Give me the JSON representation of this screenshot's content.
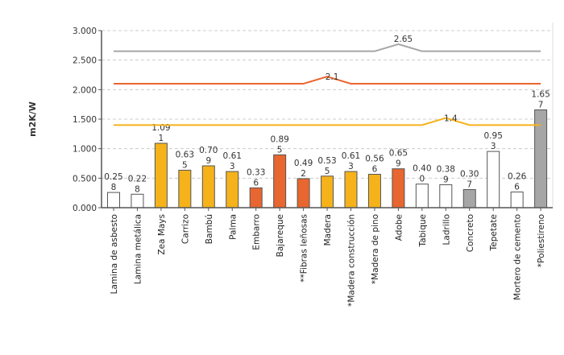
{
  "chart_data": {
    "type": "bar",
    "ylabel": "m2K/W",
    "ylim": [
      0,
      3
    ],
    "yticks": [
      "0.000",
      "0.500",
      "1.000",
      "1.500",
      "2.000",
      "2.500",
      "3.000"
    ],
    "grid": true,
    "categories": [
      "Lamina de asbesto",
      "Lamina metálica",
      "Zea Mays",
      "Carrizo",
      "Bambú",
      "Palma",
      "Embarro",
      "Bajareque",
      "**Fibras leñosas",
      "Madera",
      "*Madera construcción",
      "*Madera de pino",
      "Adobe",
      "Tabique",
      "Ladrillo",
      "Concreto",
      "Tepetate",
      "Mortero de cemento",
      "*Poliestireno"
    ],
    "values": [
      0.258,
      0.228,
      1.091,
      0.635,
      0.709,
      0.613,
      0.336,
      0.895,
      0.492,
      0.535,
      0.613,
      0.566,
      0.659,
      0.4,
      0.389,
      0.307,
      0.953,
      0.266,
      1.657
    ],
    "bar_labels_top": [
      "0.25",
      "0.22",
      "1.09",
      "0.63",
      "0.70",
      "0.61",
      "0.33",
      "0.89",
      "0.49",
      "0.53",
      "0.61",
      "0.56",
      "0.65",
      "0.40",
      "0.38",
      "0.30",
      "0.95",
      "0.26",
      "1.65"
    ],
    "bar_labels_bottom": [
      "8",
      "8",
      "1",
      "5",
      "9",
      "3",
      "6",
      "5",
      "2",
      "5",
      "3",
      "6",
      "9",
      "0",
      "9",
      "7",
      "3",
      "6",
      "7"
    ],
    "bar_colors": [
      "#ffffff",
      "#ffffff",
      "#f5b21b",
      "#f5b21b",
      "#f5b21b",
      "#f5b21b",
      "#e8662f",
      "#e8662f",
      "#e8662f",
      "#f5b21b",
      "#f5b21b",
      "#f5b21b",
      "#e8662f",
      "#ffffff",
      "#ffffff",
      "#a6a6a6",
      "#ffffff",
      "#ffffff",
      "#a6a6a6"
    ],
    "lines": [
      {
        "color": "#a6a6a6",
        "label": "2.65",
        "values": [
          2.65,
          2.65,
          2.65,
          2.65,
          2.65,
          2.65,
          2.65,
          2.65,
          2.65,
          2.65,
          2.65,
          2.65,
          2.77,
          2.65,
          2.65,
          2.65,
          2.65,
          2.65,
          2.65
        ]
      },
      {
        "color": "#e8662f",
        "label": "2.1",
        "values": [
          2.1,
          2.1,
          2.1,
          2.1,
          2.1,
          2.1,
          2.1,
          2.1,
          2.1,
          2.22,
          2.1,
          2.1,
          2.1,
          2.1,
          2.1,
          2.1,
          2.1,
          2.1,
          2.1
        ]
      },
      {
        "color": "#f5b21b",
        "label": "1.4",
        "values": [
          1.4,
          1.4,
          1.4,
          1.4,
          1.4,
          1.4,
          1.4,
          1.4,
          1.4,
          1.4,
          1.4,
          1.4,
          1.4,
          1.4,
          1.52,
          1.4,
          1.4,
          1.4,
          1.4
        ]
      }
    ]
  }
}
